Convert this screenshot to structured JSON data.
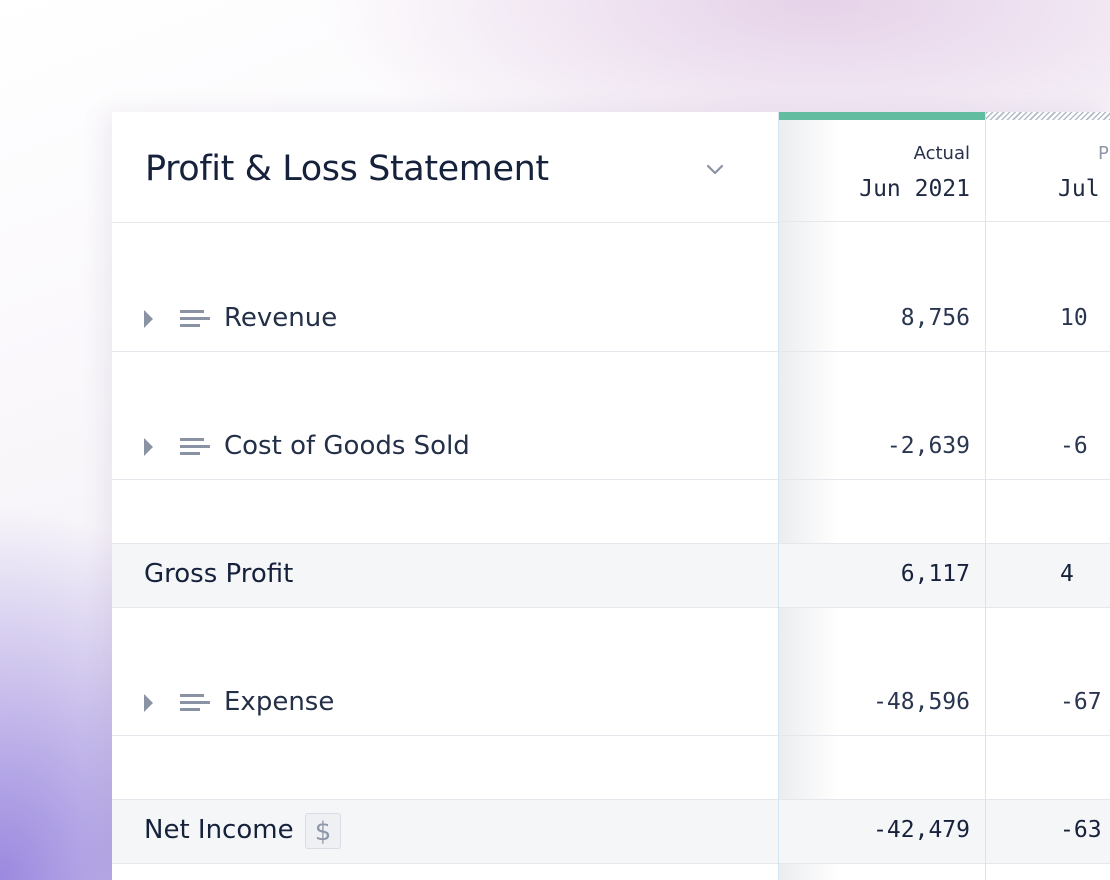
{
  "report": {
    "title": "Profit & Loss Statement",
    "dropdown_icon": "chevron-down-icon"
  },
  "columns": [
    {
      "kind": "Actual",
      "period": "Jun 2021",
      "top_bar": "solid",
      "top_bar_color": "#62bda0"
    },
    {
      "kind": "P",
      "period": "Jul",
      "top_bar": "hatched",
      "top_bar_color": "#b4bcc8"
    }
  ],
  "rows": [
    {
      "label": "Revenue",
      "type": "group",
      "values": [
        "8,756",
        "10"
      ]
    },
    {
      "label": "Cost of Goods Sold",
      "type": "group",
      "values": [
        "-2,639",
        "-6"
      ]
    },
    {
      "label": "Gross Profit",
      "type": "summary",
      "values": [
        "6,117",
        "4"
      ]
    },
    {
      "label": "Expense",
      "type": "group",
      "values": [
        "-48,596",
        "-67"
      ]
    },
    {
      "label": "Net Income",
      "type": "summary",
      "badge": "$",
      "values": [
        "-42,479",
        "-63"
      ]
    }
  ],
  "colors": {
    "accent_actual": "#62bda0",
    "title_text": "#16213b",
    "summary_row_bg": "#f5f6f8",
    "column_divider": "#d3e6f2"
  }
}
